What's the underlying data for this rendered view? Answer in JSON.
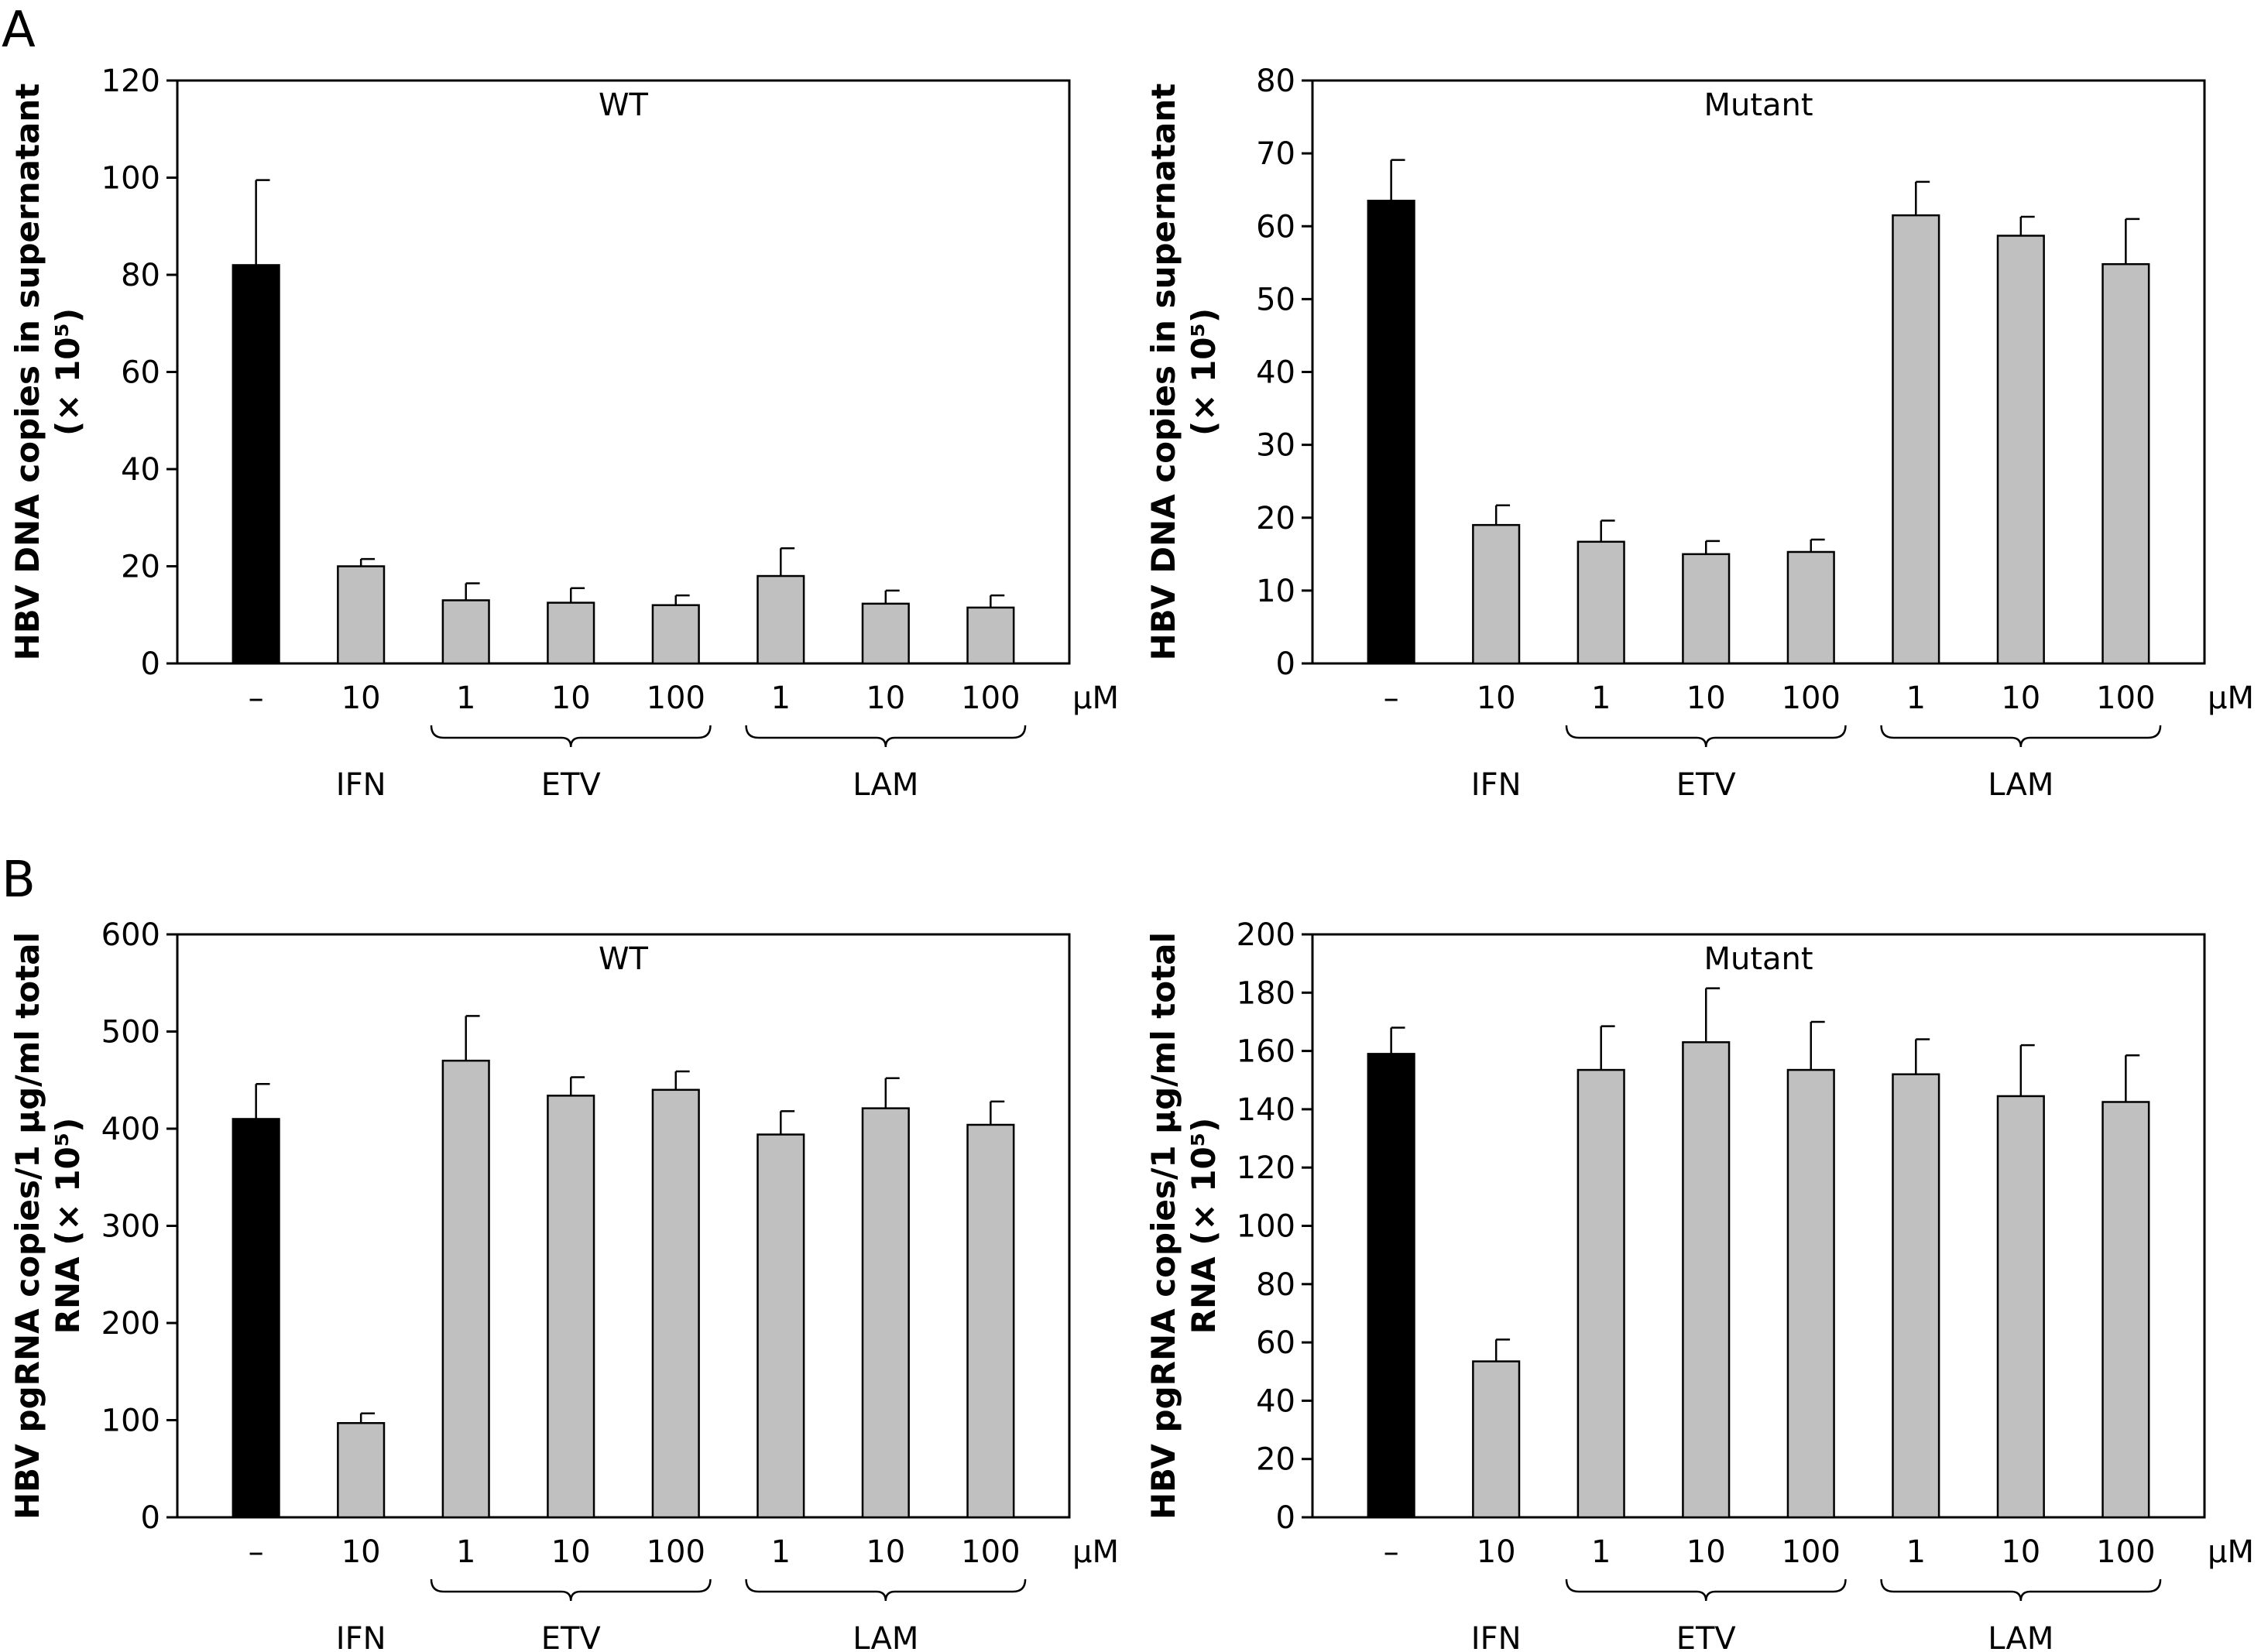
{
  "panel_labels": [
    "A",
    "B"
  ],
  "colors": {
    "control_bar": "#000000",
    "treatment_bar": "#c0c0c0",
    "axis": "#000000"
  },
  "chart_data": [
    {
      "type": "bar",
      "panel": "A",
      "title": "WT",
      "ylabel_lines": [
        "HBV DNA copies in supernatant",
        "(× 10⁵)"
      ],
      "ylim": [
        0,
        120
      ],
      "yticks": [
        0,
        20,
        40,
        60,
        80,
        100,
        120
      ],
      "categories": [
        "–",
        "10",
        "1",
        "10",
        "100",
        "1",
        "10",
        "100"
      ],
      "unit": "μM",
      "groups": [
        {
          "label": "IFN",
          "indices": [
            1
          ],
          "brace": false
        },
        {
          "label": "ETV",
          "indices": [
            2,
            3,
            4
          ],
          "brace": true
        },
        {
          "label": "LAM",
          "indices": [
            5,
            6,
            7
          ],
          "brace": true
        }
      ],
      "values": [
        82,
        20,
        13,
        12.5,
        12,
        18,
        12.3,
        11.5
      ],
      "errors": [
        17.5,
        1.5,
        3.5,
        3,
        2,
        5.7,
        2.7,
        2.5
      ],
      "bar_colors": [
        "control",
        "treatment",
        "treatment",
        "treatment",
        "treatment",
        "treatment",
        "treatment",
        "treatment"
      ]
    },
    {
      "type": "bar",
      "panel": "A",
      "title": "Mutant",
      "ylabel_lines": [
        "HBV DNA copies in supernatant",
        "(× 10⁵)"
      ],
      "ylim": [
        0,
        80
      ],
      "yticks": [
        0,
        10,
        20,
        30,
        40,
        50,
        60,
        70,
        80
      ],
      "categories": [
        "–",
        "10",
        "1",
        "10",
        "100",
        "1",
        "10",
        "100"
      ],
      "unit": "μM",
      "groups": [
        {
          "label": "IFN",
          "indices": [
            1
          ],
          "brace": false
        },
        {
          "label": "ETV",
          "indices": [
            2,
            3,
            4
          ],
          "brace": true
        },
        {
          "label": "LAM",
          "indices": [
            5,
            6,
            7
          ],
          "brace": true
        }
      ],
      "values": [
        63.5,
        19,
        16.7,
        15,
        15.3,
        61.5,
        58.7,
        54.8
      ],
      "errors": [
        5.6,
        2.7,
        2.9,
        1.8,
        1.7,
        4.6,
        2.6,
        6.2
      ],
      "bar_colors": [
        "control",
        "treatment",
        "treatment",
        "treatment",
        "treatment",
        "treatment",
        "treatment",
        "treatment"
      ]
    },
    {
      "type": "bar",
      "panel": "B",
      "title": "WT",
      "ylabel_lines": [
        "HBV pgRNA copies/1 μg/ml total",
        "RNA (× 10⁵)"
      ],
      "ylim": [
        0,
        600
      ],
      "yticks": [
        0,
        100,
        200,
        300,
        400,
        500,
        600
      ],
      "categories": [
        "–",
        "10",
        "1",
        "10",
        "100",
        "1",
        "10",
        "100"
      ],
      "unit": "μM",
      "groups": [
        {
          "label": "IFN",
          "indices": [
            1
          ],
          "brace": false
        },
        {
          "label": "ETV",
          "indices": [
            2,
            3,
            4
          ],
          "brace": true
        },
        {
          "label": "LAM",
          "indices": [
            5,
            6,
            7
          ],
          "brace": true
        }
      ],
      "values": [
        410,
        97,
        470,
        434,
        440,
        394,
        421,
        404
      ],
      "errors": [
        36,
        10,
        46,
        19,
        19,
        24,
        31,
        24
      ],
      "bar_colors": [
        "control",
        "treatment",
        "treatment",
        "treatment",
        "treatment",
        "treatment",
        "treatment",
        "treatment"
      ]
    },
    {
      "type": "bar",
      "panel": "B",
      "title": "Mutant",
      "ylabel_lines": [
        "HBV pgRNA copies/1 μg/ml total",
        "RNA (× 10⁵)"
      ],
      "ylim": [
        0,
        200
      ],
      "yticks": [
        0,
        20,
        40,
        60,
        80,
        100,
        120,
        140,
        160,
        180,
        200
      ],
      "categories": [
        "–",
        "10",
        "1",
        "10",
        "100",
        "1",
        "10",
        "100"
      ],
      "unit": "μM",
      "groups": [
        {
          "label": "IFN",
          "indices": [
            1
          ],
          "brace": false
        },
        {
          "label": "ETV",
          "indices": [
            2,
            3,
            4
          ],
          "brace": true
        },
        {
          "label": "LAM",
          "indices": [
            5,
            6,
            7
          ],
          "brace": true
        }
      ],
      "values": [
        159,
        53.5,
        153.5,
        163,
        153.5,
        152,
        144.5,
        142.5
      ],
      "errors": [
        9,
        7.5,
        15,
        18.5,
        16.5,
        12,
        17.5,
        16
      ],
      "bar_colors": [
        "control",
        "treatment",
        "treatment",
        "treatment",
        "treatment",
        "treatment",
        "treatment",
        "treatment"
      ]
    }
  ]
}
